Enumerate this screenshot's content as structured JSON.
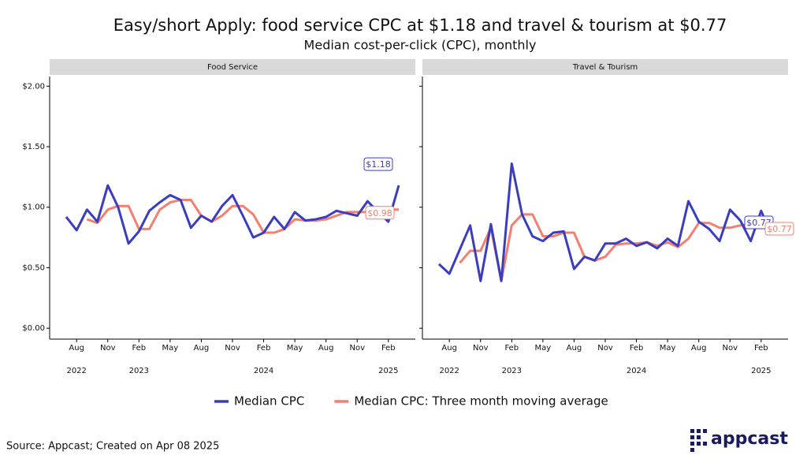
{
  "title": "Easy/short Apply: food service CPC at $1.18 and travel & tourism at $0.77",
  "subtitle": "Median cost-per-click (CPC), monthly",
  "source": "Source: Appcast; Created on Apr 08 2025",
  "logo": "appcast",
  "chart_data": [
    {
      "type": "line",
      "title": "Food Service",
      "x": [
        "2022-07",
        "2022-08",
        "2022-09",
        "2022-10",
        "2022-11",
        "2022-12",
        "2023-01",
        "2023-02",
        "2023-03",
        "2023-04",
        "2023-05",
        "2023-06",
        "2023-07",
        "2023-08",
        "2023-09",
        "2023-10",
        "2023-11",
        "2023-12",
        "2024-01",
        "2024-02",
        "2024-03",
        "2024-04",
        "2024-05",
        "2024-06",
        "2024-07",
        "2024-08",
        "2024-09",
        "2024-10",
        "2024-11",
        "2024-12",
        "2025-01",
        "2025-02",
        "2025-03"
      ],
      "xlim": [
        "2022-07",
        "2025-03"
      ],
      "xticks": [
        {
          "value": "2022-08",
          "label": "Aug"
        },
        {
          "value": "2022-11",
          "label": "Nov"
        },
        {
          "value": "2023-02",
          "label": "Feb"
        },
        {
          "value": "2023-05",
          "label": "May"
        },
        {
          "value": "2023-08",
          "label": "Aug"
        },
        {
          "value": "2023-11",
          "label": "Nov"
        },
        {
          "value": "2024-02",
          "label": "Feb"
        },
        {
          "value": "2024-05",
          "label": "May"
        },
        {
          "value": "2024-08",
          "label": "Aug"
        },
        {
          "value": "2024-11",
          "label": "Nov"
        },
        {
          "value": "2025-02",
          "label": "Feb"
        }
      ],
      "year_ticks": [
        {
          "value": "2022-08",
          "label": "2022"
        },
        {
          "value": "2023-02",
          "label": "2023"
        },
        {
          "value": "2024-02",
          "label": "2024"
        },
        {
          "value": "2025-02",
          "label": "2025"
        }
      ],
      "ylim": [
        -0.09,
        2.08
      ],
      "yticks": [
        {
          "value": 0,
          "label": "$0.00"
        },
        {
          "value": 0.5,
          "label": "$0.50"
        },
        {
          "value": 1,
          "label": "$1.00"
        },
        {
          "value": 1.5,
          "label": "$1.50"
        },
        {
          "value": 2,
          "label": "$2.00"
        }
      ],
      "series": [
        {
          "name": "Median CPC",
          "color": "#3b3dbf",
          "end_label": "$1.18",
          "values": [
            0.92,
            0.81,
            0.98,
            0.88,
            1.18,
            1.0,
            0.7,
            0.8,
            0.97,
            1.04,
            1.1,
            1.06,
            0.83,
            0.93,
            0.88,
            1.01,
            1.1,
            0.93,
            0.75,
            0.79,
            0.92,
            0.82,
            0.96,
            0.89,
            0.9,
            0.92,
            0.97,
            0.95,
            0.93,
            1.05,
            0.96,
            0.88,
            1.18
          ]
        },
        {
          "name": "Median CPC: Three month moving average",
          "color": "#f47f6e",
          "end_label": "$0.98",
          "values": [
            null,
            null,
            0.9,
            0.87,
            0.98,
            1.01,
            1.01,
            0.82,
            0.82,
            0.98,
            1.04,
            1.06,
            1.06,
            0.93,
            0.88,
            0.93,
            1.01,
            1.01,
            0.94,
            0.79,
            0.79,
            0.82,
            0.9,
            0.89,
            0.89,
            0.9,
            0.93,
            0.96,
            0.96,
            0.96,
            0.98,
            0.98,
            0.98
          ]
        }
      ]
    },
    {
      "type": "line",
      "title": "Travel & Tourism",
      "x": [
        "2022-07",
        "2022-08",
        "2022-09",
        "2022-10",
        "2022-11",
        "2022-12",
        "2023-01",
        "2023-02",
        "2023-03",
        "2023-04",
        "2023-05",
        "2023-06",
        "2023-07",
        "2023-08",
        "2023-09",
        "2023-10",
        "2023-11",
        "2023-12",
        "2024-01",
        "2024-02",
        "2024-03",
        "2024-04",
        "2024-05",
        "2024-06",
        "2024-07",
        "2024-08",
        "2024-09",
        "2024-10",
        "2024-11",
        "2024-12",
        "2025-01",
        "2025-02",
        "2025-03"
      ],
      "xlim": [
        "2022-07",
        "2025-03"
      ],
      "xticks": [
        {
          "value": "2022-08",
          "label": "Aug"
        },
        {
          "value": "2022-11",
          "label": "Nov"
        },
        {
          "value": "2023-02",
          "label": "Feb"
        },
        {
          "value": "2023-05",
          "label": "May"
        },
        {
          "value": "2023-08",
          "label": "Aug"
        },
        {
          "value": "2023-11",
          "label": "Nov"
        },
        {
          "value": "2024-02",
          "label": "Feb"
        },
        {
          "value": "2024-05",
          "label": "May"
        },
        {
          "value": "2024-08",
          "label": "Aug"
        },
        {
          "value": "2024-11",
          "label": "Nov"
        },
        {
          "value": "2025-02",
          "label": "Feb"
        }
      ],
      "year_ticks": [
        {
          "value": "2022-08",
          "label": "2022"
        },
        {
          "value": "2023-02",
          "label": "2023"
        },
        {
          "value": "2024-02",
          "label": "2024"
        },
        {
          "value": "2025-02",
          "label": "2025"
        }
      ],
      "ylim": [
        -0.09,
        2.08
      ],
      "yticks": [
        0,
        0.5,
        1,
        1.5,
        2
      ],
      "series": [
        {
          "color": "#3b3dbf",
          "end_label": "$0.77",
          "values": [
            0.53,
            0.45,
            0.65,
            0.85,
            0.39,
            0.86,
            0.39,
            1.36,
            0.94,
            0.76,
            0.72,
            0.79,
            0.8,
            0.49,
            0.59,
            0.56,
            0.7,
            0.7,
            0.74,
            0.68,
            0.71,
            0.66,
            0.74,
            0.68,
            1.05,
            0.88,
            0.82,
            0.72,
            0.98,
            0.89,
            0.72,
            0.97,
            0.77
          ]
        },
        {
          "color": "#f47f6e",
          "end_label": "$0.77",
          "values": [
            null,
            null,
            0.54,
            0.64,
            0.64,
            0.83,
            0.39,
            0.85,
            0.94,
            0.94,
            0.76,
            0.76,
            0.79,
            0.79,
            0.59,
            0.56,
            0.59,
            0.69,
            0.7,
            0.7,
            0.71,
            0.68,
            0.71,
            0.67,
            0.74,
            0.87,
            0.87,
            0.83,
            0.83,
            0.85,
            0.86,
            0.86,
            0.77
          ]
        }
      ]
    }
  ]
}
